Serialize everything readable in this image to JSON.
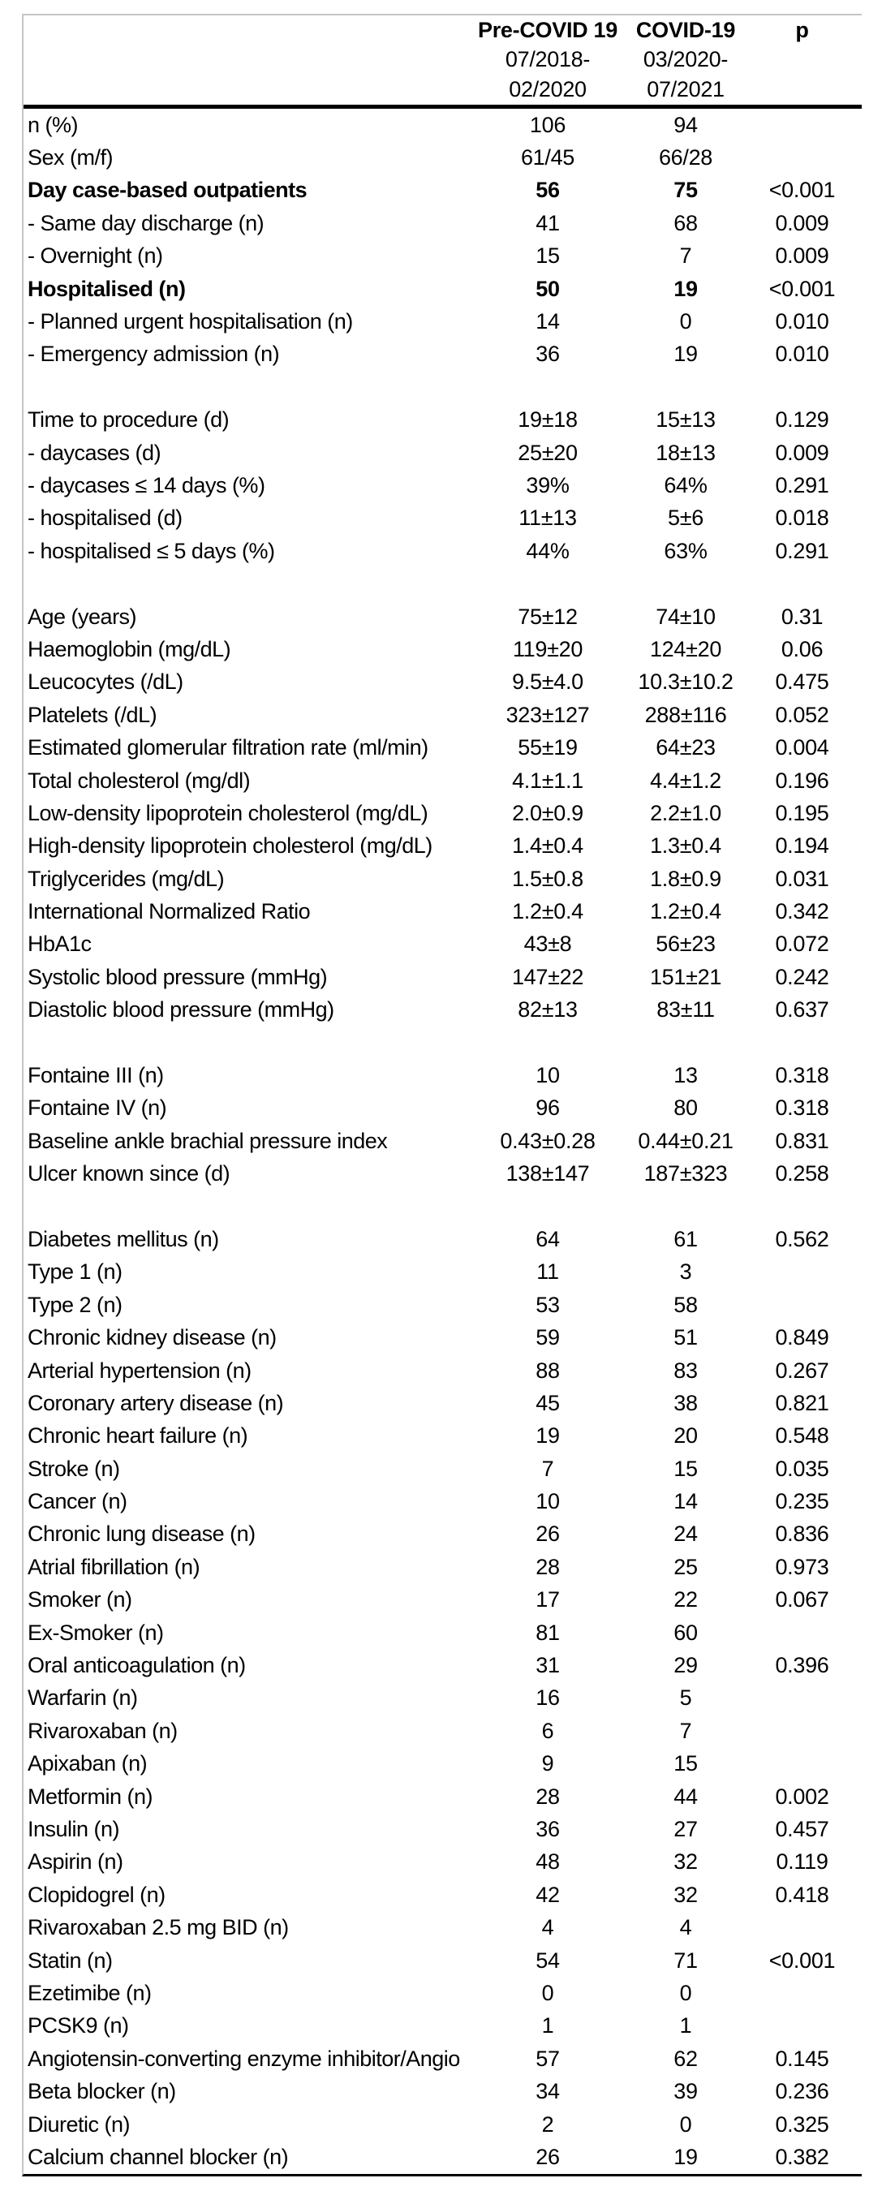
{
  "table": {
    "header": {
      "pre": {
        "title": "Pre-COVID 19",
        "period_line1": "07/2018-",
        "period_line2": "02/2020"
      },
      "covid": {
        "title": "COVID-19",
        "period_line1": "03/2020-",
        "period_line2": "07/2021"
      },
      "p": "p"
    },
    "rows": [
      {
        "label": "n (%)",
        "pre": "106",
        "covid": "94",
        "p": ""
      },
      {
        "label": "Sex (m/f)",
        "pre": "61/45",
        "covid": "66/28",
        "p": ""
      },
      {
        "label": "Day case-based outpatients",
        "pre": "56",
        "covid": "75",
        "p": "<0.001",
        "bold": true
      },
      {
        "label": "- Same day discharge (n)",
        "pre": "41",
        "covid": "68",
        "p": "0.009"
      },
      {
        "label": "- Overnight (n)",
        "pre": "15",
        "covid": "7",
        "p": "0.009"
      },
      {
        "label": "Hospitalised (n)",
        "pre": "50",
        "covid": "19",
        "p": "<0.001",
        "bold": true
      },
      {
        "label": "- Planned urgent hospitalisation (n)",
        "pre": "14",
        "covid": "0",
        "p": "0.010"
      },
      {
        "label": "- Emergency admission (n)",
        "pre": "36",
        "covid": "19",
        "p": "0.010"
      },
      {
        "blank": true
      },
      {
        "label": "Time to procedure (d)",
        "pre": "19±18",
        "covid": "15±13",
        "p": "0.129"
      },
      {
        "label": "- daycases (d)",
        "pre": "25±20",
        "covid": "18±13",
        "p": "0.009"
      },
      {
        "label": "- daycases ≤ 14 days (%)",
        "pre": "39%",
        "covid": "64%",
        "p": "0.291"
      },
      {
        "label": "- hospitalised (d)",
        "pre": "11±13",
        "covid": "5±6",
        "p": "0.018"
      },
      {
        "label": "- hospitalised ≤ 5 days (%)",
        "pre": "44%",
        "covid": "63%",
        "p": "0.291"
      },
      {
        "blank": true
      },
      {
        "label": "Age (years)",
        "pre": "75±12",
        "covid": "74±10",
        "p": "0.31"
      },
      {
        "label": "Haemoglobin (mg/dL)",
        "pre": "119±20",
        "covid": "124±20",
        "p": "0.06"
      },
      {
        "label": "Leucocytes (/dL)",
        "pre": "9.5±4.0",
        "covid": "10.3±10.2",
        "p": "0.475"
      },
      {
        "label": "Platelets (/dL)",
        "pre": "323±127",
        "covid": "288±116",
        "p": "0.052"
      },
      {
        "label": "Estimated glomerular filtration rate (ml/min)",
        "pre": "55±19",
        "covid": "64±23",
        "p": "0.004"
      },
      {
        "label": "Total cholesterol (mg/dl)",
        "pre": "4.1±1.1",
        "covid": "4.4±1.2",
        "p": "0.196"
      },
      {
        "label": "Low-density lipoprotein cholesterol (mg/dL)",
        "pre": "2.0±0.9",
        "covid": "2.2±1.0",
        "p": "0.195"
      },
      {
        "label": "High-density lipoprotein cholesterol  (mg/dL)",
        "pre": "1.4±0.4",
        "covid": "1.3±0.4",
        "p": "0.194"
      },
      {
        "label": "Triglycerides (mg/dL)",
        "pre": "1.5±0.8",
        "covid": "1.8±0.9",
        "p": "0.031"
      },
      {
        "label": "International Normalized Ratio",
        "pre": "1.2±0.4",
        "covid": "1.2±0.4",
        "p": "0.342"
      },
      {
        "label": "HbA1c",
        "pre": "43±8",
        "covid": "56±23",
        "p": "0.072"
      },
      {
        "label": "Systolic blood pressure (mmHg)",
        "pre": "147±22",
        "covid": "151±21",
        "p": "0.242"
      },
      {
        "label": "Diastolic blood pressure (mmHg)",
        "pre": "82±13",
        "covid": "83±11",
        "p": "0.637"
      },
      {
        "blank": true
      },
      {
        "label": "Fontaine III (n)",
        "pre": "10",
        "covid": "13",
        "p": "0.318"
      },
      {
        "label": "Fontaine IV (n)",
        "pre": "96",
        "covid": "80",
        "p": "0.318"
      },
      {
        "label": "Baseline ankle brachial pressure index",
        "pre": "0.43±0.28",
        "covid": "0.44±0.21",
        "p": "0.831"
      },
      {
        "label": "Ulcer known since (d)",
        "pre": "138±147",
        "covid": "187±323",
        "p": "0.258"
      },
      {
        "blank": true
      },
      {
        "label": "Diabetes mellitus  (n)",
        "pre": "64",
        "covid": "61",
        "p": "0.562"
      },
      {
        "label": "Type 1 (n)",
        "pre": "11",
        "covid": "3",
        "p": ""
      },
      {
        "label": "Type 2 (n)",
        "pre": "53",
        "covid": "58",
        "p": ""
      },
      {
        "label": "Chronic kidney disease (n)",
        "pre": "59",
        "covid": "51",
        "p": "0.849"
      },
      {
        "label": "Arterial hypertension (n)",
        "pre": "88",
        "covid": "83",
        "p": "0.267"
      },
      {
        "label": "Coronary artery disease (n)",
        "pre": "45",
        "covid": "38",
        "p": "0.821"
      },
      {
        "label": "Chronic heart failure (n)",
        "pre": "19",
        "covid": "20",
        "p": "0.548"
      },
      {
        "label": "Stroke (n)",
        "pre": "7",
        "covid": "15",
        "p": "0.035"
      },
      {
        "label": "Cancer (n)",
        "pre": "10",
        "covid": "14",
        "p": "0.235"
      },
      {
        "label": "Chronic lung disease (n)",
        "pre": "26",
        "covid": "24",
        "p": "0.836"
      },
      {
        "label": "Atrial fibrillation (n)",
        "pre": "28",
        "covid": "25",
        "p": "0.973"
      },
      {
        "label": "Smoker (n)",
        "pre": "17",
        "covid": "22",
        "p": "0.067"
      },
      {
        "label": "Ex-Smoker (n)",
        "pre": "81",
        "covid": "60",
        "p": ""
      },
      {
        "label": "Oral anticoagulation (n)",
        "pre": "31",
        "covid": "29",
        "p": "0.396"
      },
      {
        "label": "Warfarin (n)",
        "pre": "16",
        "covid": "5",
        "p": ""
      },
      {
        "label": "Rivaroxaban (n)",
        "pre": "6",
        "covid": "7",
        "p": ""
      },
      {
        "label": "Apixaban (n)",
        "pre": "9",
        "covid": "15",
        "p": ""
      },
      {
        "label": "Metformin (n)",
        "pre": "28",
        "covid": "44",
        "p": "0.002"
      },
      {
        "label": "Insulin (n)",
        "pre": "36",
        "covid": "27",
        "p": "0.457"
      },
      {
        "label": "Aspirin (n)",
        "pre": "48",
        "covid": "32",
        "p": "0.119"
      },
      {
        "label": "Clopidogrel (n)",
        "pre": "42",
        "covid": "32",
        "p": "0.418"
      },
      {
        "label": "Rivaroxaban 2.5 mg BID (n)",
        "pre": "4",
        "covid": "4",
        "p": ""
      },
      {
        "label": "Statin (n)",
        "pre": "54",
        "covid": "71",
        "p": "<0.001"
      },
      {
        "label": "Ezetimibe (n)",
        "pre": "0",
        "covid": "0",
        "p": ""
      },
      {
        "label": "PCSK9 (n)",
        "pre": "1",
        "covid": "1",
        "p": ""
      },
      {
        "label": "Angiotensin-converting enzyme inhibitor/Angio",
        "pre": "57",
        "covid": "62",
        "p": "0.145"
      },
      {
        "label": "Beta blocker (n)",
        "pre": "34",
        "covid": "39",
        "p": "0.236"
      },
      {
        "label": "Diuretic (n)",
        "pre": "2",
        "covid": "0",
        "p": "0.325"
      },
      {
        "label": "Calcium channel blocker (n)",
        "pre": "26",
        "covid": "19",
        "p": "0.382"
      }
    ],
    "colors": {
      "rule_black": "#000000",
      "rule_gray": "#c6c6c6",
      "text": "#000000",
      "background": "#ffffff"
    }
  }
}
